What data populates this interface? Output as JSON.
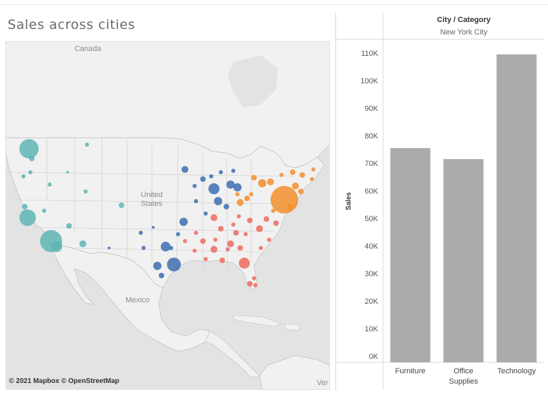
{
  "map": {
    "title": "Sales across cities",
    "labels": {
      "canada": "Canada",
      "us": "United States",
      "mexico": "Mexico",
      "edge": "Ver"
    },
    "credit": "© 2021 Mapbox © OpenStreetMap",
    "region_colors": {
      "west": "#5fb5b5",
      "central": "#3d6eb0",
      "east": "#f28e2b",
      "south": "#ef6b5e"
    }
  },
  "chart_data": {
    "type": "bar",
    "header_title": "City / Category",
    "header_subtitle": "New York City",
    "ylabel": "Sales",
    "categories": [
      "Furniture",
      "Office\nSupplies",
      "Technology"
    ],
    "values": [
      75500,
      71500,
      109500
    ],
    "ylim": [
      0,
      110000
    ],
    "yticks": [
      0,
      10000,
      20000,
      30000,
      40000,
      50000,
      60000,
      70000,
      80000,
      90000,
      100000,
      110000
    ],
    "ytick_labels": [
      "0K",
      "10K",
      "20K",
      "30K",
      "40K",
      "50K",
      "60K",
      "70K",
      "80K",
      "90K",
      "100K",
      "110K"
    ],
    "bar_color": "#ababab",
    "grid": false
  }
}
